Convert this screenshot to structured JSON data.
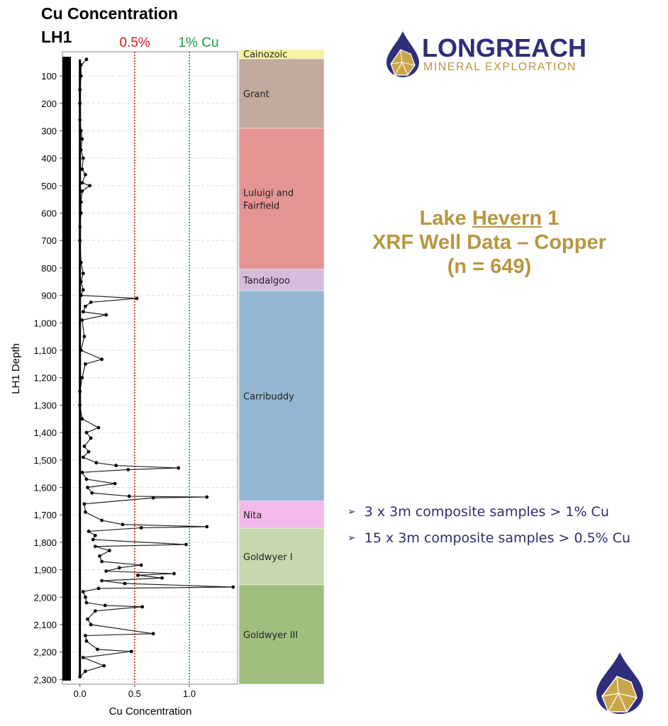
{
  "colors": {
    "accent_gold": "#b8963e",
    "navy": "#2e2e7a",
    "threshold_05": "#d01c1c",
    "threshold_1": "#1a9a4a"
  },
  "logo": {
    "word": "LONGREACH",
    "sub": "MINERAL EXPLORATION"
  },
  "headline": {
    "line1_a": "Lake ",
    "line1_b": "Hevern",
    "line1_c": " 1",
    "line2": "XRF Well Data – Copper",
    "line3": "(n = 649)"
  },
  "bullets": [
    {
      "icon": "arrow-right-icon",
      "text": "3 x 3m composite samples > 1% Cu"
    },
    {
      "icon": "arrow-right-icon",
      "text": "15 x 3m composite samples > 0.5% Cu"
    }
  ],
  "chart_data": {
    "type": "line",
    "title": "Cu Concentration",
    "subtitle": "LH1",
    "xlabel": "Cu Concentration",
    "ylabel": "LH1 Depth",
    "xlim": [
      -0.16,
      1.44
    ],
    "ylim": [
      2317,
      12
    ],
    "grid": true,
    "xticks": [
      "0.0",
      "0.5",
      "1.0"
    ],
    "xtick_values": [
      0,
      0.5,
      1.0
    ],
    "yticks": [
      "100",
      "200",
      "300",
      "400",
      "500",
      "600",
      "700",
      "800",
      "900",
      "1,000",
      "1,100",
      "1,200",
      "1,300",
      "1,400",
      "1,500",
      "1,600",
      "1,700",
      "1,800",
      "1,900",
      "2,000",
      "2,100",
      "2,200",
      "2,300"
    ],
    "ytick_values": [
      100,
      200,
      300,
      400,
      500,
      600,
      700,
      800,
      900,
      1000,
      1100,
      1200,
      1300,
      1400,
      1500,
      1600,
      1700,
      1800,
      1900,
      2000,
      2100,
      2200,
      2300
    ],
    "thresholds": [
      {
        "label": "0.5%",
        "value": 0.5,
        "color": "#d01c1c"
      },
      {
        "label": "1% Cu",
        "value": 1.0,
        "color": "#1a9a4a"
      }
    ],
    "formations": [
      {
        "name": "Cainozoic",
        "top": 4,
        "base": 38,
        "color": "#f6f2a2"
      },
      {
        "name": "Grant",
        "top": 38,
        "base": 291,
        "color": "#c0ab9d"
      },
      {
        "name": "Luluigi and\nFairfield",
        "top": 291,
        "base": 805,
        "color": "#e59494"
      },
      {
        "name": "Tandalgoo",
        "top": 805,
        "base": 883,
        "color": "#d5bcdd"
      },
      {
        "name": "Carribuddy",
        "top": 883,
        "base": 1650,
        "color": "#95b8d2"
      },
      {
        "name": "Nita",
        "top": 1650,
        "base": 1749,
        "color": "#f4b8ea"
      },
      {
        "name": "Goldwyer I",
        "top": 1749,
        "base": 1955,
        "color": "#c7d8ae"
      },
      {
        "name": "Goldwyer III",
        "top": 1955,
        "base": 2317,
        "color": "#a0bf7e"
      }
    ],
    "points": [
      [
        40,
        0.06
      ],
      [
        60,
        0.01
      ],
      [
        100,
        0.01
      ],
      [
        150,
        0.0
      ],
      [
        200,
        0.0
      ],
      [
        260,
        0.0
      ],
      [
        300,
        0.01
      ],
      [
        330,
        0.02
      ],
      [
        370,
        0.01
      ],
      [
        400,
        0.03
      ],
      [
        440,
        0.02
      ],
      [
        460,
        0.05
      ],
      [
        490,
        0.02
      ],
      [
        500,
        0.09
      ],
      [
        520,
        0.02
      ],
      [
        560,
        0.01
      ],
      [
        600,
        0.01
      ],
      [
        650,
        0.0
      ],
      [
        700,
        0.0
      ],
      [
        780,
        0.01
      ],
      [
        820,
        0.03
      ],
      [
        850,
        0.01
      ],
      [
        880,
        0.03
      ],
      [
        900,
        0.01
      ],
      [
        911,
        0.52
      ],
      [
        925,
        0.1
      ],
      [
        940,
        0.05
      ],
      [
        960,
        0.03
      ],
      [
        971,
        0.24
      ],
      [
        990,
        0.02
      ],
      [
        1050,
        0.04
      ],
      [
        1100,
        0.01
      ],
      [
        1133,
        0.2
      ],
      [
        1150,
        0.05
      ],
      [
        1200,
        0.02
      ],
      [
        1250,
        0.0
      ],
      [
        1300,
        0.0
      ],
      [
        1350,
        0.02
      ],
      [
        1382,
        0.17
      ],
      [
        1400,
        0.06
      ],
      [
        1420,
        0.1
      ],
      [
        1450,
        0.04
      ],
      [
        1470,
        0.08
      ],
      [
        1490,
        0.03
      ],
      [
        1510,
        0.15
      ],
      [
        1520,
        0.33
      ],
      [
        1529,
        0.9
      ],
      [
        1535,
        0.44
      ],
      [
        1545,
        0.02
      ],
      [
        1570,
        0.06
      ],
      [
        1586,
        0.32
      ],
      [
        1600,
        0.07
      ],
      [
        1620,
        0.11
      ],
      [
        1632,
        0.45
      ],
      [
        1635,
        1.16
      ],
      [
        1638,
        0.67
      ],
      [
        1660,
        0.04
      ],
      [
        1690,
        0.05
      ],
      [
        1720,
        0.2
      ],
      [
        1735,
        0.39
      ],
      [
        1743,
        1.16
      ],
      [
        1747,
        0.56
      ],
      [
        1760,
        0.08
      ],
      [
        1775,
        0.14
      ],
      [
        1790,
        0.12
      ],
      [
        1808,
        0.97
      ],
      [
        1815,
        0.14
      ],
      [
        1830,
        0.27
      ],
      [
        1850,
        0.18
      ],
      [
        1870,
        0.2
      ],
      [
        1883,
        0.56
      ],
      [
        1893,
        0.36
      ],
      [
        1905,
        0.24
      ],
      [
        1914,
        0.86
      ],
      [
        1920,
        0.53
      ],
      [
        1930,
        0.75
      ],
      [
        1940,
        0.2
      ],
      [
        1950,
        0.41
      ],
      [
        1963,
        1.4
      ],
      [
        1968,
        0.17
      ],
      [
        1980,
        0.03
      ],
      [
        2000,
        0.05
      ],
      [
        2020,
        0.06
      ],
      [
        2030,
        0.23
      ],
      [
        2035,
        0.57
      ],
      [
        2050,
        0.14
      ],
      [
        2080,
        0.07
      ],
      [
        2100,
        0.1
      ],
      [
        2133,
        0.67
      ],
      [
        2140,
        0.05
      ],
      [
        2160,
        0.06
      ],
      [
        2190,
        0.16
      ],
      [
        2198,
        0.47
      ],
      [
        2220,
        0.03
      ],
      [
        2250,
        0.22
      ],
      [
        2270,
        0.05
      ],
      [
        2290,
        0.0
      ]
    ]
  }
}
